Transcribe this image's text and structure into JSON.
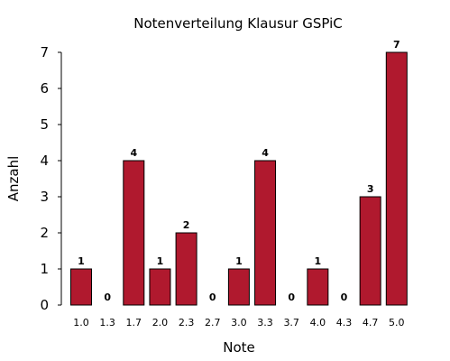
{
  "chart_data": {
    "type": "bar",
    "title": "Notenverteilung Klausur GSPiC",
    "xlabel": "Note",
    "ylabel": "Anzahl",
    "categories": [
      "1.0",
      "1.3",
      "1.7",
      "2.0",
      "2.3",
      "2.7",
      "3.0",
      "3.3",
      "3.7",
      "4.0",
      "4.3",
      "4.7",
      "5.0"
    ],
    "values": [
      1,
      0,
      4,
      1,
      2,
      0,
      1,
      4,
      0,
      1,
      0,
      3,
      7
    ],
    "data_labels": [
      "1",
      "0",
      "4",
      "1",
      "2",
      "0",
      "1",
      "4",
      "0",
      "1",
      "0",
      "3",
      "7"
    ],
    "ylim": [
      0,
      7
    ],
    "yticks": [
      "0",
      "1",
      "2",
      "3",
      "4",
      "5",
      "6",
      "7"
    ],
    "grid": false,
    "bar_color": "#b0192e",
    "bar_outline": "#000000"
  }
}
